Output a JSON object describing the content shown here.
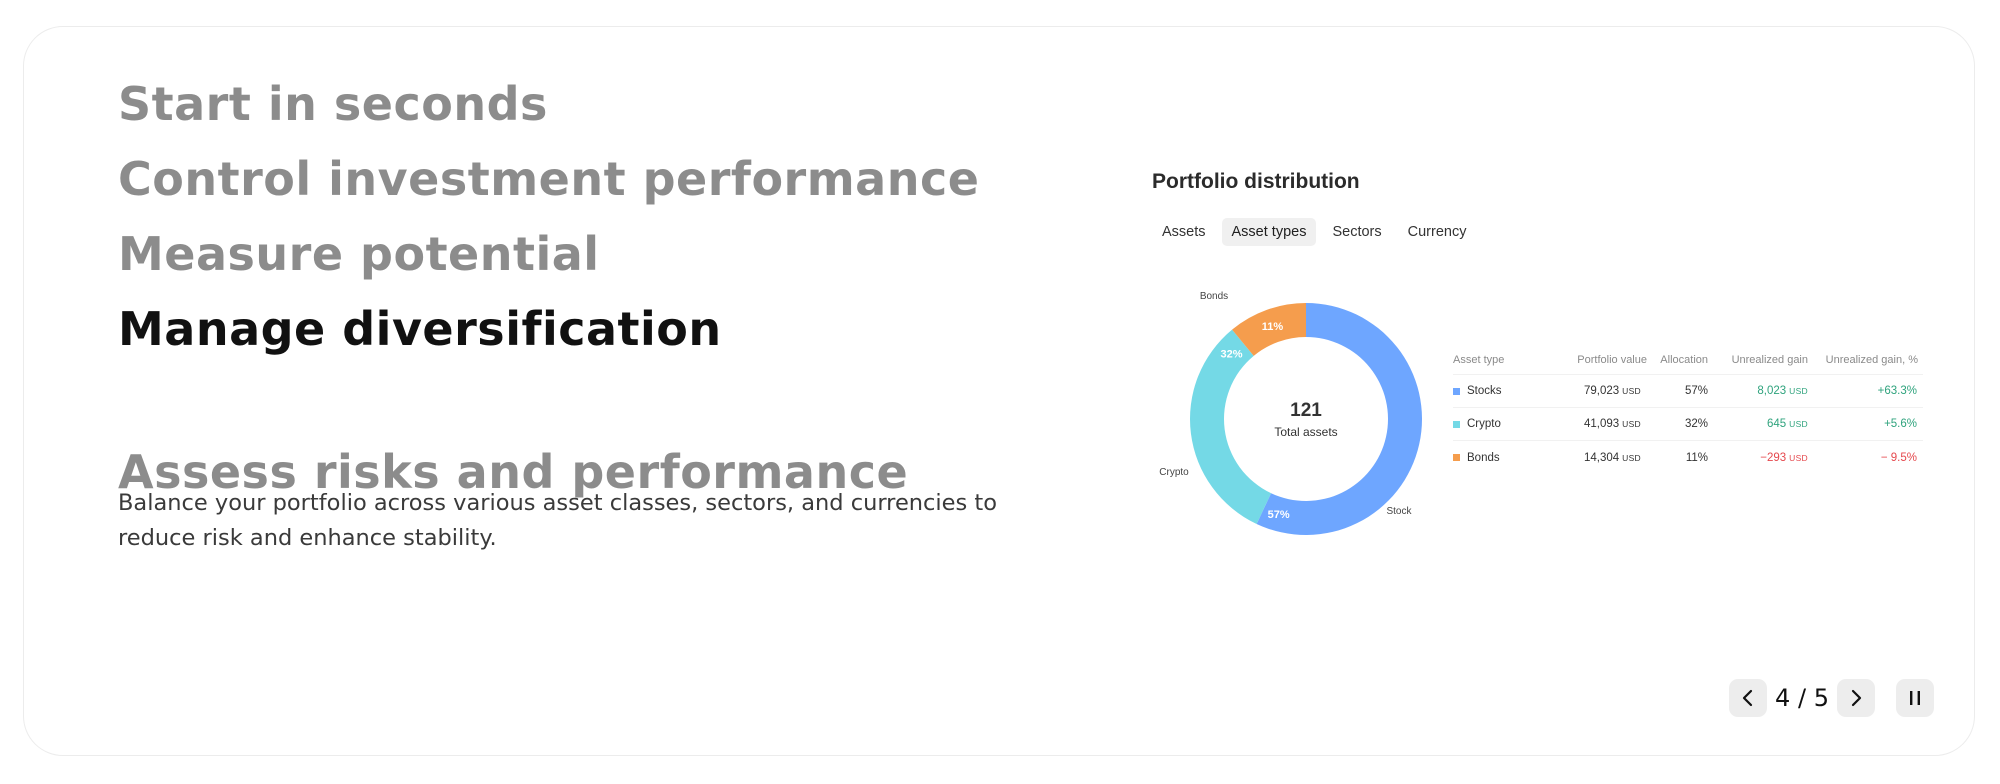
{
  "features": [
    {
      "title": "Start in seconds"
    },
    {
      "title": "Control investment performance"
    },
    {
      "title": "Measure potential"
    },
    {
      "title": "Manage diversification",
      "description": "Balance your portfolio across various asset classes, sectors, and currencies to reduce risk and enhance stability."
    },
    {
      "title": "Assess risks and performance"
    }
  ],
  "active_feature": 3,
  "widget": {
    "title": "Portfolio distribution",
    "tabs": [
      "Assets",
      "Asset types",
      "Sectors",
      "Currency"
    ],
    "active_tab": "Asset types",
    "donut": {
      "center_value": "121",
      "center_label": "Total assets",
      "label_bonds": "Bonds",
      "label_crypto": "Crypto",
      "label_stock": "Stock"
    },
    "table": {
      "headers": [
        "Asset type",
        "Portfolio value",
        "Allocation",
        "Unrealized gain",
        "Unrealized gain, %"
      ],
      "unit": "USD",
      "rows": [
        {
          "type": "Stocks",
          "value": "79,023",
          "allocation": "57%",
          "gain": "8,023",
          "gain_pct": "+63.3%"
        },
        {
          "type": "Crypto",
          "value": "41,093",
          "allocation": "32%",
          "gain": "645",
          "gain_pct": "+5.6%"
        },
        {
          "type": "Bonds",
          "value": "14,304",
          "allocation": "11%",
          "gain": "−293",
          "gain_pct": "− 9.5%"
        }
      ]
    }
  },
  "chart_data": {
    "type": "pie",
    "categories": [
      "Stocks",
      "Crypto",
      "Bonds"
    ],
    "values": [
      57,
      32,
      11
    ],
    "slice_labels": [
      "57%",
      "32%",
      "11%"
    ],
    "colors": [
      "#6ea6ff",
      "#74d9e6",
      "#f59d4d"
    ]
  },
  "pagination": {
    "current": "4",
    "separator": "/",
    "total": "5"
  },
  "colors": {
    "active_title": "#111111",
    "inactive_title": "#8c8c8c",
    "positive": "#2fa37d",
    "negative": "#e5484d"
  }
}
